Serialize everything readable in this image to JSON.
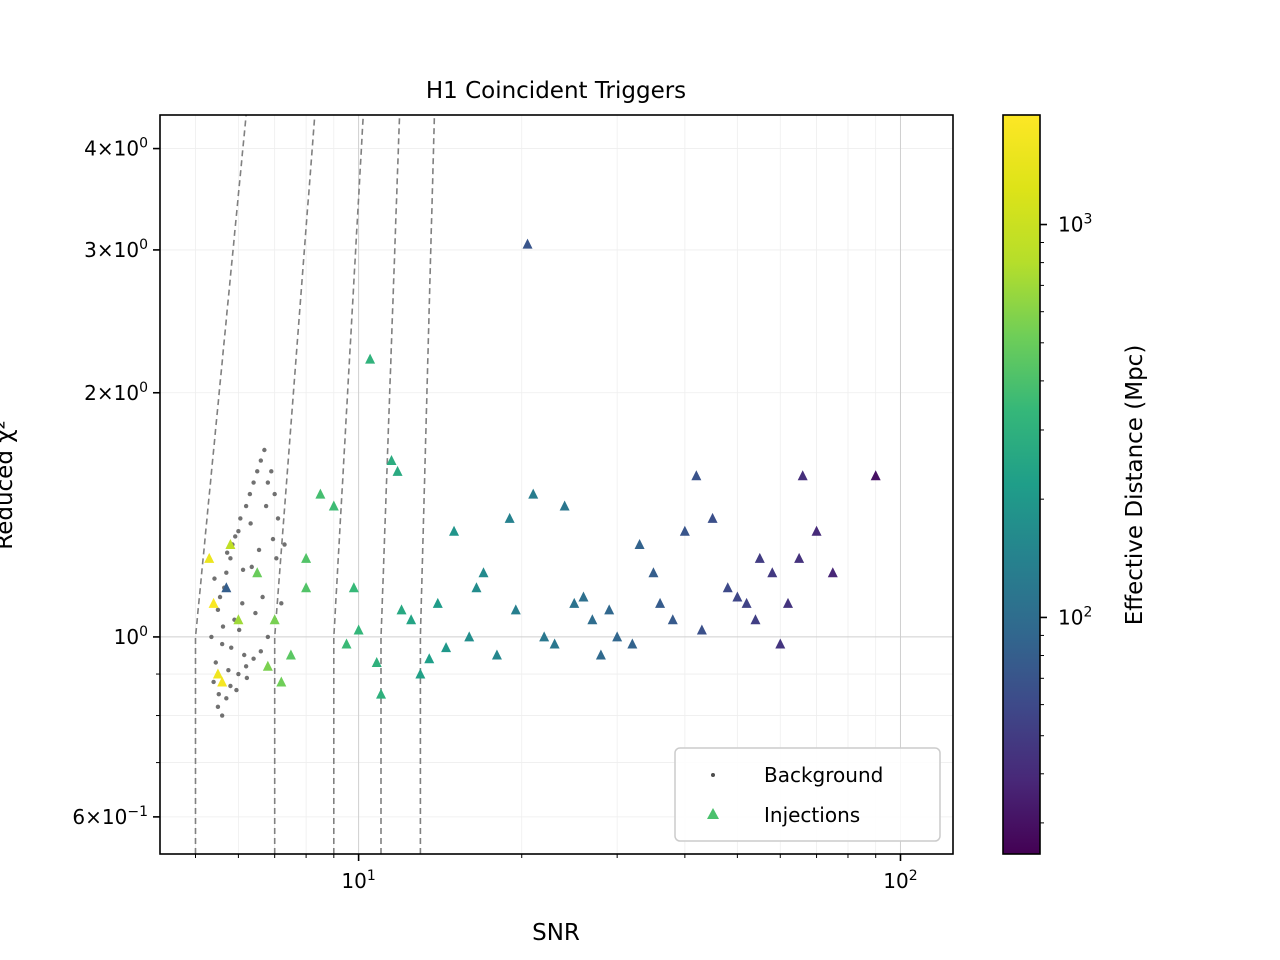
{
  "chart_data": {
    "type": "scatter",
    "title": "H1 Coincident Triggers",
    "xlabel": "SNR",
    "ylabel": "Reduced χ²",
    "xscale": "log",
    "yscale": "log",
    "xlim": [
      4.3,
      125
    ],
    "ylim": [
      0.54,
      4.4
    ],
    "grid": true,
    "legend_position": "lower-right",
    "x_ticks": [
      {
        "value": 10,
        "base": "10",
        "exp": "1"
      },
      {
        "value": 100,
        "base": "10",
        "exp": "2"
      }
    ],
    "y_ticks": [
      {
        "value": 0.6,
        "mant": "6",
        "exp": "−1"
      },
      {
        "value": 1,
        "mant": "",
        "exp": "0"
      },
      {
        "value": 2,
        "mant": "2",
        "exp": "0"
      },
      {
        "value": 3,
        "mant": "3",
        "exp": "0"
      },
      {
        "value": 4,
        "mant": "4",
        "exp": "0"
      }
    ],
    "colorbar": {
      "label": "Effective Distance (Mpc)",
      "scale": "log",
      "colormap": "viridis",
      "range": [
        25,
        1900
      ],
      "ticks": [
        {
          "value": 100,
          "base": "10",
          "exp": "2"
        },
        {
          "value": 1000,
          "base": "10",
          "exp": "3"
        }
      ]
    },
    "contours": {
      "color": "#808080",
      "style": "dashed",
      "snr_threshold": [
        5.0,
        7.0,
        9.0,
        11.0,
        13.0
      ],
      "x_at_top": [
        6.2,
        8.3,
        10.2,
        11.9,
        13.8
      ]
    },
    "series": [
      {
        "name": "Background",
        "marker": "dot",
        "color": "#4d4d4d",
        "points": [
          [
            5.4,
            0.88
          ],
          [
            5.45,
            0.93
          ],
          [
            5.5,
            1.08
          ],
          [
            5.55,
            1.12
          ],
          [
            5.6,
            0.98
          ],
          [
            5.65,
            1.15
          ],
          [
            5.7,
            1.2
          ],
          [
            5.75,
            0.91
          ],
          [
            5.8,
            1.25
          ],
          [
            5.85,
            1.3
          ],
          [
            5.9,
            1.05
          ],
          [
            5.95,
            0.86
          ],
          [
            6.0,
            1.35
          ],
          [
            6.05,
            1.4
          ],
          [
            6.1,
            1.1
          ],
          [
            6.15,
            0.95
          ],
          [
            6.2,
            1.45
          ],
          [
            6.3,
            1.5
          ],
          [
            6.35,
            1.22
          ],
          [
            6.4,
            1.55
          ],
          [
            6.5,
            1.6
          ],
          [
            6.6,
            1.65
          ],
          [
            6.7,
            1.7
          ],
          [
            6.8,
            1.55
          ],
          [
            6.9,
            1.6
          ],
          [
            7.0,
            1.5
          ],
          [
            7.1,
            1.4
          ],
          [
            5.5,
            0.82
          ],
          [
            5.6,
            0.8
          ],
          [
            5.7,
            0.84
          ],
          [
            5.8,
            0.87
          ],
          [
            6.0,
            0.9
          ],
          [
            6.2,
            0.92
          ],
          [
            6.4,
            0.94
          ],
          [
            6.6,
            0.96
          ],
          [
            6.8,
            1.0
          ],
          [
            7.0,
            1.05
          ],
          [
            7.2,
            1.1
          ],
          [
            5.35,
            1.0
          ],
          [
            5.42,
            1.18
          ],
          [
            5.52,
            0.85
          ],
          [
            5.62,
            1.03
          ],
          [
            5.72,
            1.27
          ],
          [
            5.82,
            0.97
          ],
          [
            5.92,
            1.33
          ],
          [
            6.02,
            1.02
          ],
          [
            6.12,
            1.21
          ],
          [
            6.22,
            0.89
          ],
          [
            6.32,
            1.38
          ],
          [
            6.45,
            1.07
          ],
          [
            6.55,
            1.28
          ],
          [
            6.65,
            1.12
          ],
          [
            6.75,
            1.45
          ],
          [
            6.95,
            1.32
          ],
          [
            7.05,
            1.25
          ],
          [
            7.3,
            1.3
          ]
        ]
      },
      {
        "name": "Injections",
        "marker": "triangle",
        "legend_color": "#4ac16d",
        "points": [
          [
            5.3,
            1.25,
            1500
          ],
          [
            5.4,
            1.1,
            1800
          ],
          [
            5.5,
            0.9,
            1600
          ],
          [
            5.6,
            0.88,
            1700
          ],
          [
            5.8,
            1.3,
            900
          ],
          [
            5.7,
            1.15,
            80
          ],
          [
            6.0,
            1.05,
            700
          ],
          [
            6.5,
            1.2,
            500
          ],
          [
            7.0,
            1.05,
            550
          ],
          [
            7.5,
            0.95,
            450
          ],
          [
            8.0,
            1.15,
            420
          ],
          [
            8.5,
            1.5,
            380
          ],
          [
            9.0,
            1.45,
            360
          ],
          [
            9.5,
            0.98,
            350
          ],
          [
            10.0,
            1.02,
            330
          ],
          [
            10.5,
            2.2,
            310
          ],
          [
            11.0,
            0.85,
            300
          ],
          [
            11.5,
            1.65,
            280
          ],
          [
            11.8,
            1.6,
            270
          ],
          [
            12.5,
            1.05,
            240
          ],
          [
            13.0,
            0.9,
            230
          ],
          [
            14.0,
            1.1,
            210
          ],
          [
            15.0,
            1.35,
            190
          ],
          [
            16.0,
            1.0,
            170
          ],
          [
            17.0,
            1.2,
            160
          ],
          [
            18.0,
            0.95,
            150
          ],
          [
            19.0,
            1.4,
            140
          ],
          [
            20.5,
            3.05,
            70
          ],
          [
            21.0,
            1.5,
            130
          ],
          [
            22.0,
            1.0,
            120
          ],
          [
            24.0,
            1.45,
            115
          ],
          [
            25.0,
            1.1,
            110
          ],
          [
            27.0,
            1.05,
            100
          ],
          [
            28.0,
            0.95,
            95
          ],
          [
            30.0,
            1.0,
            90
          ],
          [
            33.0,
            1.3,
            85
          ],
          [
            35.0,
            1.2,
            80
          ],
          [
            38.0,
            1.05,
            75
          ],
          [
            40.0,
            1.35,
            70
          ],
          [
            42.0,
            1.58,
            68
          ],
          [
            45.0,
            1.4,
            65
          ],
          [
            48.0,
            1.15,
            60
          ],
          [
            52.0,
            1.1,
            55
          ],
          [
            55.0,
            1.25,
            50
          ],
          [
            58.0,
            1.2,
            48
          ],
          [
            60.0,
            0.98,
            46
          ],
          [
            65.0,
            1.25,
            44
          ],
          [
            66.0,
            1.58,
            42
          ],
          [
            70.0,
            1.35,
            40
          ],
          [
            75.0,
            1.2,
            38
          ],
          [
            90.0,
            1.58,
            30
          ],
          [
            8.0,
            1.25,
            420
          ],
          [
            9.8,
            1.15,
            340
          ],
          [
            12.0,
            1.08,
            260
          ],
          [
            14.5,
            0.97,
            200
          ],
          [
            16.5,
            1.15,
            165
          ],
          [
            19.5,
            1.08,
            135
          ],
          [
            23.0,
            0.98,
            118
          ],
          [
            26.0,
            1.12,
            105
          ],
          [
            29.0,
            1.08,
            92
          ],
          [
            32.0,
            0.98,
            86
          ],
          [
            36.0,
            1.1,
            78
          ],
          [
            43.0,
            1.02,
            66
          ],
          [
            50.0,
            1.12,
            58
          ],
          [
            54.0,
            1.05,
            52
          ],
          [
            62.0,
            1.1,
            45
          ],
          [
            7.2,
            0.88,
            520
          ],
          [
            6.8,
            0.92,
            560
          ],
          [
            10.8,
            0.93,
            305
          ],
          [
            13.5,
            0.94,
            220
          ]
        ]
      }
    ]
  }
}
